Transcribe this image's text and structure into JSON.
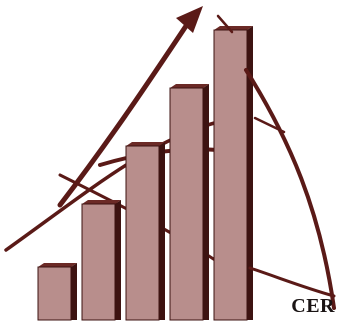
{
  "logo": {
    "caption": "CER"
  },
  "chart_data": {
    "type": "bar",
    "categories": [
      "",
      "",
      "",
      "",
      ""
    ],
    "values": [
      1,
      2,
      3,
      4,
      5
    ],
    "title": "",
    "xlabel": "",
    "ylabel": ""
  },
  "colors": {
    "bar_face": "#b88e8c",
    "bar_side": "#3d1311",
    "bar_top": "#6b2a26",
    "arrow": "#5a1a17",
    "caption": "#1a1414"
  }
}
